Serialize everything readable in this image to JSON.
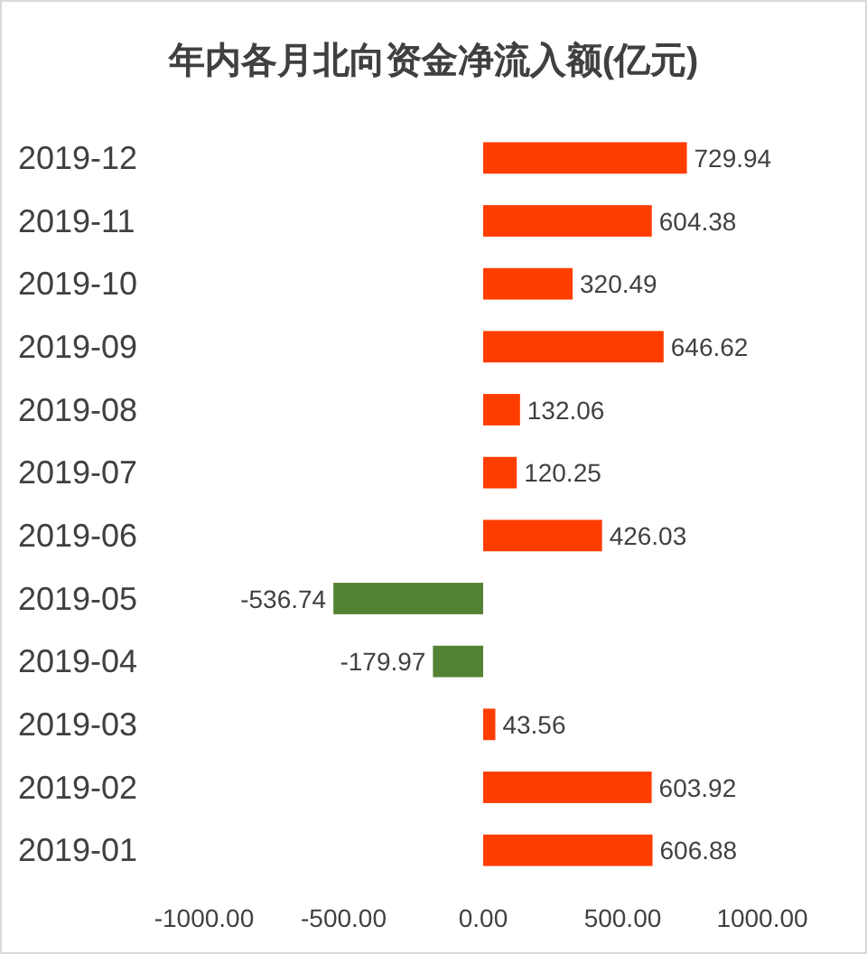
{
  "chart_data": {
    "type": "bar",
    "orientation": "horizontal",
    "title": "年内各月北向资金净流入额(亿元)",
    "categories": [
      "2019-12",
      "2019-11",
      "2019-10",
      "2019-09",
      "2019-08",
      "2019-07",
      "2019-06",
      "2019-05",
      "2019-04",
      "2019-03",
      "2019-02",
      "2019-01"
    ],
    "values": [
      729.94,
      604.38,
      320.49,
      646.62,
      132.06,
      120.25,
      426.03,
      -536.74,
      -179.97,
      43.56,
      603.92,
      606.88
    ],
    "colors": [
      "#ff3d00",
      "#ff3d00",
      "#ff3d00",
      "#ff3d00",
      "#ff3d00",
      "#ff3d00",
      "#ff3d00",
      "#548235",
      "#548235",
      "#ff3d00",
      "#ff3d00",
      "#ff3d00"
    ],
    "xlim": [
      -1000,
      1000
    ],
    "xticks": [
      {
        "value": -1000,
        "label": "-1000.00"
      },
      {
        "value": -500,
        "label": "-500.00"
      },
      {
        "value": 0,
        "label": "0.00"
      },
      {
        "value": 500,
        "label": "500.00"
      },
      {
        "value": 1000,
        "label": "1000.00"
      }
    ],
    "data_labels": true
  }
}
